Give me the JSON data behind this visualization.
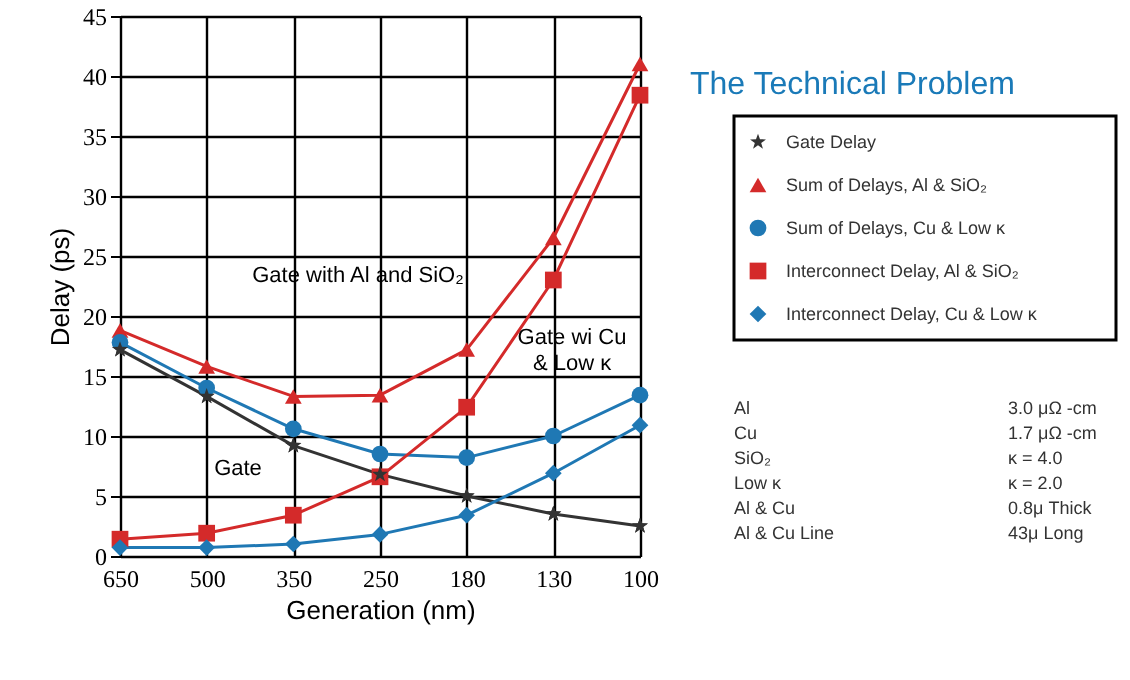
{
  "chart_data": {
    "type": "line",
    "title": "The Technical Problem",
    "xlabel": "Generation (nm)",
    "ylabel": "Delay (ps)",
    "categories": [
      "650",
      "500",
      "350",
      "250",
      "180",
      "130",
      "100"
    ],
    "series": [
      {
        "name": "Gate Delay",
        "color": "#333333",
        "marker": "star",
        "values": [
          17.2,
          13.3,
          9.2,
          6.8,
          5.0,
          3.5,
          2.5
        ]
      },
      {
        "name": "Sum of Delays, Al & SiO₂",
        "color": "#d42a2a",
        "marker": "triangle",
        "values": [
          18.8,
          15.8,
          13.3,
          13.4,
          17.2,
          26.5,
          41.0
        ]
      },
      {
        "name": "Sum of Delays, Cu & Low κ",
        "color": "#1f78b4",
        "marker": "circle",
        "values": [
          17.8,
          14.0,
          10.6,
          8.5,
          8.2,
          10.0,
          13.4
        ]
      },
      {
        "name": "Interconnect Delay, Al & SiO₂",
        "color": "#d42a2a",
        "marker": "square",
        "values": [
          1.4,
          1.9,
          3.4,
          6.6,
          12.4,
          23.0,
          38.4
        ]
      },
      {
        "name": "Interconnect Delay, Cu & Low κ",
        "color": "#1f78b4",
        "marker": "diamond",
        "values": [
          0.7,
          0.7,
          1.0,
          1.8,
          3.4,
          6.9,
          10.9
        ]
      }
    ],
    "ylim": [
      0,
      45
    ],
    "yticks": [
      0,
      5,
      10,
      15,
      20,
      25,
      30,
      35,
      40,
      45
    ],
    "grid": true,
    "legend": "right",
    "annotations": [
      "Gate with Al and SiO₂",
      "Gate",
      "Gate wi Cu\n& Low κ",
      "Al\t3.0 μΩ -cm",
      "Cu\t1.7 μΩ -cm",
      "SiO₂\tκ = 4.0",
      "Low κ\tκ = 2.0",
      "Al & Cu\t0.8μ Thick",
      "Al & Cu Line\t43μ Long"
    ]
  }
}
